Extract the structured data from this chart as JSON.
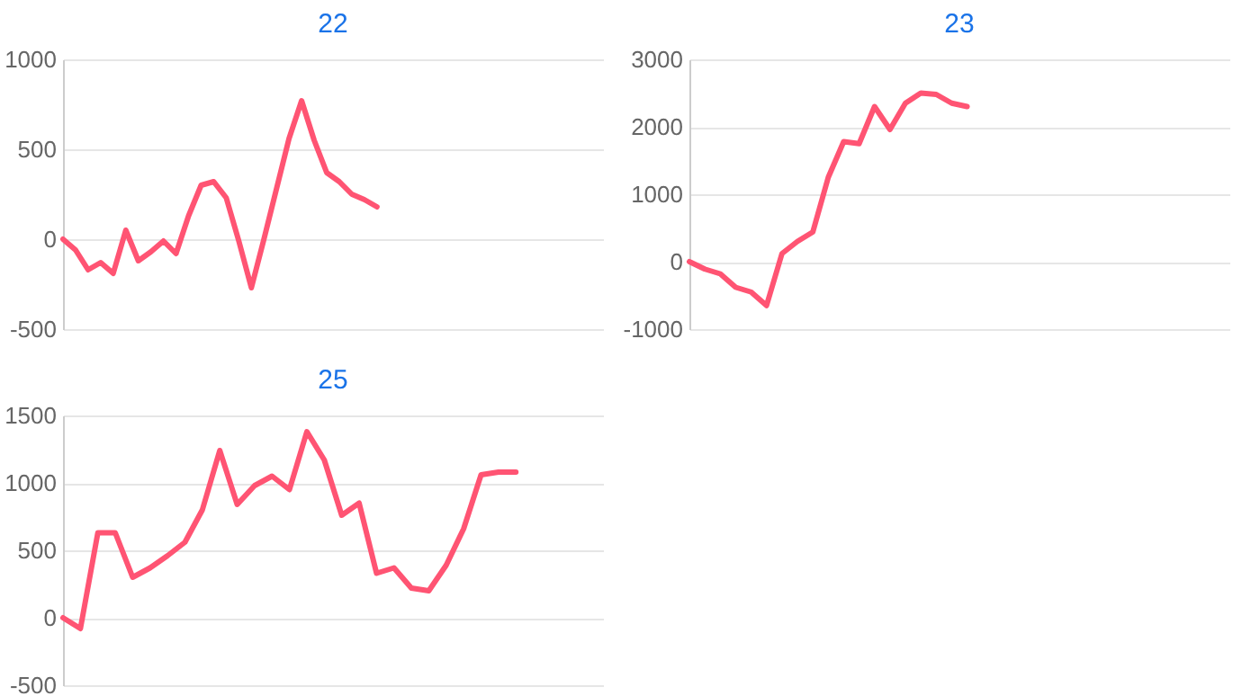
{
  "chart_data": [
    {
      "type": "line",
      "title": "22",
      "categories": [
        null,
        null,
        null,
        null,
        null,
        null,
        null,
        null,
        null,
        null,
        null,
        null,
        null,
        null,
        null,
        null,
        null,
        null,
        null,
        null,
        null,
        null,
        null,
        null,
        null,
        null,
        null,
        null,
        null,
        null,
        null,
        null,
        null,
        null,
        null,
        null,
        null,
        null,
        null,
        null,
        null,
        null,
        null,
        null
      ],
      "series": [
        {
          "color": "#ff5473",
          "values": [
            0,
            -60,
            -170,
            -130,
            -190,
            50,
            -120,
            -70,
            -10,
            -80,
            130,
            300,
            320,
            230,
            -10,
            -270,
            0,
            280,
            560,
            770,
            550,
            370,
            320,
            250,
            220,
            180,
            null,
            null,
            null,
            null,
            null,
            null,
            null,
            null,
            null,
            null,
            null,
            null,
            null,
            null,
            null,
            null,
            null,
            null
          ]
        }
      ],
      "ylim": [
        -500,
        1000
      ],
      "yticks": [
        -500,
        0,
        500,
        1000
      ],
      "grid": "y",
      "tick_labels": "y"
    },
    {
      "type": "line",
      "title": "23",
      "categories": [
        null,
        null,
        null,
        null,
        null,
        null,
        null,
        null,
        null,
        null,
        null,
        null,
        null,
        null,
        null,
        null,
        null,
        null,
        null,
        null,
        null,
        null,
        null,
        null,
        null,
        null,
        null,
        null,
        null,
        null,
        null,
        null,
        null,
        null,
        null,
        null
      ],
      "series": [
        {
          "color": "#ff5473",
          "values": [
            0,
            -110,
            -180,
            -380,
            -450,
            -650,
            120,
            300,
            440,
            1250,
            1780,
            1750,
            2300,
            1960,
            2350,
            2500,
            2480,
            2350,
            2300,
            null,
            null,
            null,
            null,
            null,
            null,
            null,
            null,
            null,
            null,
            null,
            null,
            null,
            null,
            null,
            null,
            null
          ]
        }
      ],
      "ylim": [
        -1000,
        3000
      ],
      "yticks": [
        -1000,
        0,
        1000,
        2000,
        3000
      ],
      "grid": "y",
      "tick_labels": "y"
    },
    {
      "type": "line",
      "title": "25",
      "categories": [
        null,
        null,
        null,
        null,
        null,
        null,
        null,
        null,
        null,
        null,
        null,
        null,
        null,
        null,
        null,
        null,
        null,
        null,
        null,
        null,
        null,
        null,
        null,
        null,
        null,
        null,
        null,
        null,
        null,
        null,
        null,
        null
      ],
      "series": [
        {
          "color": "#ff5473",
          "values": [
            0,
            -80,
            630,
            630,
            300,
            370,
            460,
            560,
            800,
            1240,
            840,
            980,
            1050,
            950,
            1380,
            1170,
            760,
            850,
            330,
            370,
            220,
            200,
            390,
            660,
            1060,
            1080,
            1080,
            null,
            null,
            null,
            null,
            null
          ]
        }
      ],
      "ylim": [
        -500,
        1500
      ],
      "yticks": [
        -500,
        0,
        500,
        1000,
        1500
      ],
      "grid": "y",
      "tick_labels": "y"
    }
  ]
}
